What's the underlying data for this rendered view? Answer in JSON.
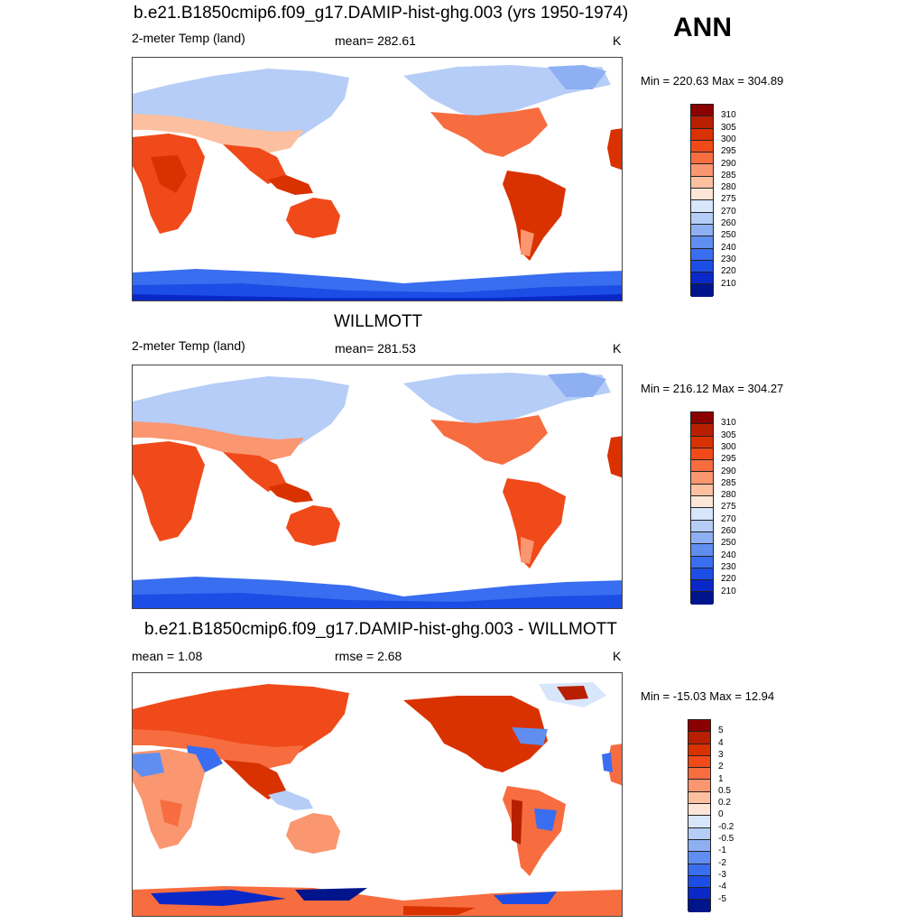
{
  "corner_label": "ANN",
  "panels": [
    {
      "title": "b.e21.B1850cmip6.f09_g17.DAMIP-hist-ghg.003 (yrs 1950-1974)",
      "left": "2-meter Temp (land)",
      "center": "mean= 282.61",
      "unit": "K",
      "minmax": "Min = 220.63 Max = 304.89",
      "colorbar_labels": [
        "310",
        "305",
        "300",
        "295",
        "290",
        "285",
        "280",
        "275",
        "270",
        "260",
        "250",
        "240",
        "230",
        "220",
        "210"
      ],
      "colors": [
        "#8b0000",
        "#b81f00",
        "#d93200",
        "#f04a1a",
        "#f76d40",
        "#fa9670",
        "#fcc0a0",
        "#fde6d8",
        "#d8e6fb",
        "#b5cdf7",
        "#8eb0f3",
        "#5f8ef0",
        "#3a6ef0",
        "#1c4ee6",
        "#0a28c8",
        "#00158c"
      ]
    },
    {
      "title": "WILLMOTT",
      "left": "2-meter Temp (land)",
      "center": "mean= 281.53",
      "unit": "K",
      "minmax": "Min = 216.12 Max = 304.27",
      "colorbar_labels": [
        "310",
        "305",
        "300",
        "295",
        "290",
        "285",
        "280",
        "275",
        "270",
        "260",
        "250",
        "240",
        "230",
        "220",
        "210"
      ],
      "colors": [
        "#8b0000",
        "#b81f00",
        "#d93200",
        "#f04a1a",
        "#f76d40",
        "#fa9670",
        "#fcc0a0",
        "#fde6d8",
        "#d8e6fb",
        "#b5cdf7",
        "#8eb0f3",
        "#5f8ef0",
        "#3a6ef0",
        "#1c4ee6",
        "#0a28c8",
        "#00158c"
      ]
    },
    {
      "title": "b.e21.B1850cmip6.f09_g17.DAMIP-hist-ghg.003 - WILLMOTT",
      "left": "mean =   1.08",
      "center": "rmse =   2.68",
      "unit": "K",
      "minmax": "Min = -15.03 Max =  12.94",
      "colorbar_labels": [
        "5",
        "4",
        "3",
        "2",
        "1",
        "0.5",
        "0.2",
        "0",
        "-0.2",
        "-0.5",
        "-1",
        "-2",
        "-3",
        "-4",
        "-5"
      ],
      "colors": [
        "#8b0000",
        "#b81f00",
        "#d93200",
        "#f04a1a",
        "#f76d40",
        "#fa9670",
        "#fcc0a0",
        "#fde6d8",
        "#d8e6fb",
        "#b5cdf7",
        "#8eb0f3",
        "#5f8ef0",
        "#3a6ef0",
        "#1c4ee6",
        "#0a28c8",
        "#00158c"
      ]
    }
  ]
}
